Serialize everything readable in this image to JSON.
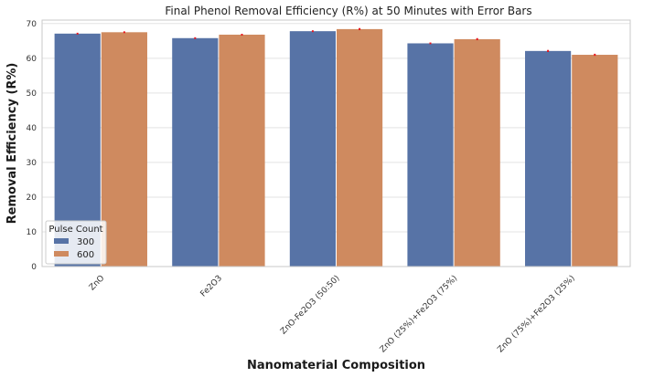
{
  "chart_data": {
    "type": "bar",
    "title": "Final Phenol Removal Efficiency (R%) at 50 Minutes with Error Bars",
    "xlabel": "Nanomaterial Composition",
    "ylabel": "Removal Efficiency (R%)",
    "categories": [
      "ZnO",
      "Fe2O3",
      "ZnO-Fe2O3 (50:50)",
      "ZnO (25%)+Fe2O3 (75%)",
      "ZnO (75%)+Fe2O3 (25%)"
    ],
    "series": [
      {
        "name": "300",
        "color": "#5773a6",
        "values": [
          67.1,
          65.8,
          67.8,
          64.3,
          62.1
        ],
        "errors": [
          0.25,
          0.25,
          0.25,
          0.25,
          0.3
        ]
      },
      {
        "name": "600",
        "color": "#cf8a5f",
        "values": [
          67.5,
          66.8,
          68.4,
          65.5,
          61.0
        ],
        "errors": [
          0.25,
          0.25,
          0.3,
          0.3,
          0.3
        ]
      }
    ],
    "error_bar_color": "#e8141c",
    "ylim": [
      0,
      71
    ],
    "yticks": [
      0,
      10,
      20,
      30,
      40,
      50,
      60,
      70
    ],
    "grid": "horizontal",
    "legend": {
      "title": "Pulse Count",
      "placement": "bottom-left"
    }
  }
}
